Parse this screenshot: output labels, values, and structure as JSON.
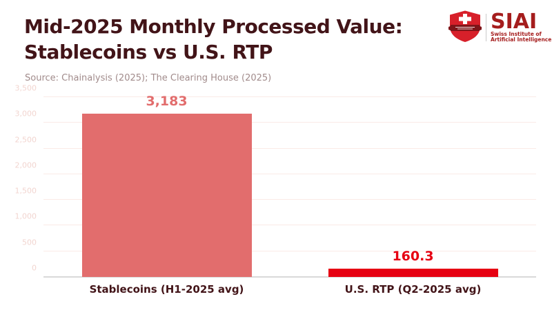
{
  "header": {
    "title_line1": "Mid-2025 Monthly Processed Value:",
    "title_line2": "Stablecoins vs U.S. RTP",
    "source": "Source: Chainalysis (2025); The Clearing House (2025)"
  },
  "logo": {
    "acronym": "SIAI",
    "subtitle_line1": "Swiss Institute of",
    "subtitle_line2": "Artificial Intelligence",
    "shield_icon": "swiss-shield-icon"
  },
  "chart_data": {
    "type": "bar",
    "title": "Mid-2025 Monthly Processed Value: Stablecoins vs U.S. RTP",
    "categories": [
      "Stablecoins (H1-2025 avg)",
      "U.S. RTP (Q2-2025 avg)"
    ],
    "values": [
      3183,
      160.3
    ],
    "value_labels": [
      "3,183",
      "160.3"
    ],
    "bar_colors": [
      "#e26d6d",
      "#e60012"
    ],
    "ylim": [
      0,
      3500
    ],
    "yticks": [
      0,
      500,
      1000,
      1500,
      2000,
      2500,
      3000,
      3500
    ],
    "ytick_labels": [
      "0",
      "500",
      "1,000",
      "1,500",
      "2,000",
      "2,500",
      "3,000",
      "3,500"
    ],
    "xlabel": "",
    "ylabel": "",
    "grid": true,
    "legend_position": "none"
  },
  "colors": {
    "title_text": "#421418",
    "source_text": "#a18b8b",
    "category_label": "#421418",
    "ytick_text": "#f2d5d0",
    "gridline": "#faeae6",
    "axis_line": "#d9d9d9",
    "logo_text": "#a51d1d",
    "shield_fill": "#d7202a",
    "shield_banner": "#7e1519",
    "background": "#ffffff"
  }
}
